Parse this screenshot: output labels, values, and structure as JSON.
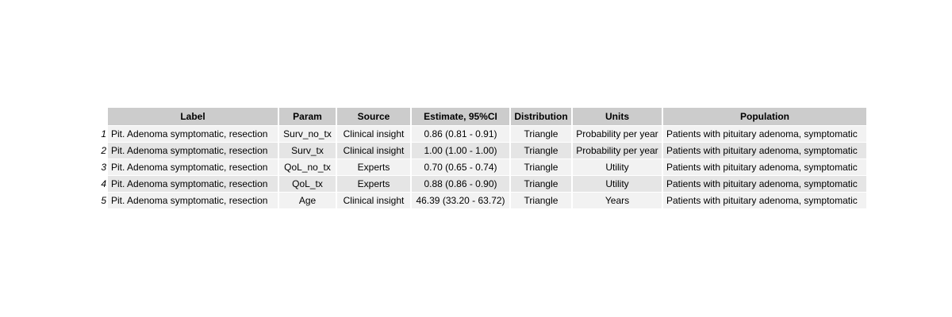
{
  "table": {
    "headers": [
      "Label",
      "Param",
      "Source",
      "Estimate, 95%CI",
      "Distribution",
      "Units",
      "Population"
    ],
    "rows": [
      {
        "num": "1",
        "label": "Pit. Adenoma symptomatic, resection",
        "param": "Surv_no_tx",
        "source": "Clinical insight",
        "estimate": "0.86 (0.81 - 0.91)",
        "distribution": "Triangle",
        "units": "Probability per year",
        "population": "Patients with pituitary adenoma, symptomatic"
      },
      {
        "num": "2",
        "label": "Pit. Adenoma symptomatic, resection",
        "param": "Surv_tx",
        "source": "Clinical insight",
        "estimate": "1.00 (1.00 - 1.00)",
        "distribution": "Triangle",
        "units": "Probability per year",
        "population": "Patients with pituitary adenoma, symptomatic"
      },
      {
        "num": "3",
        "label": "Pit. Adenoma symptomatic, resection",
        "param": "QoL_no_tx",
        "source": "Experts",
        "estimate": "0.70 (0.65 - 0.74)",
        "distribution": "Triangle",
        "units": "Utility",
        "population": "Patients with pituitary adenoma, symptomatic"
      },
      {
        "num": "4",
        "label": "Pit. Adenoma symptomatic, resection",
        "param": "QoL_tx",
        "source": "Experts",
        "estimate": "0.88 (0.86 - 0.90)",
        "distribution": "Triangle",
        "units": "Utility",
        "population": "Patients with pituitary adenoma, symptomatic"
      },
      {
        "num": "5",
        "label": "Pit. Adenoma symptomatic, resection",
        "param": "Age",
        "source": "Clinical insight",
        "estimate": "46.39 (33.20 - 63.72)",
        "distribution": "Triangle",
        "units": "Years",
        "population": "Patients with pituitary adenoma, symptomatic"
      }
    ]
  }
}
